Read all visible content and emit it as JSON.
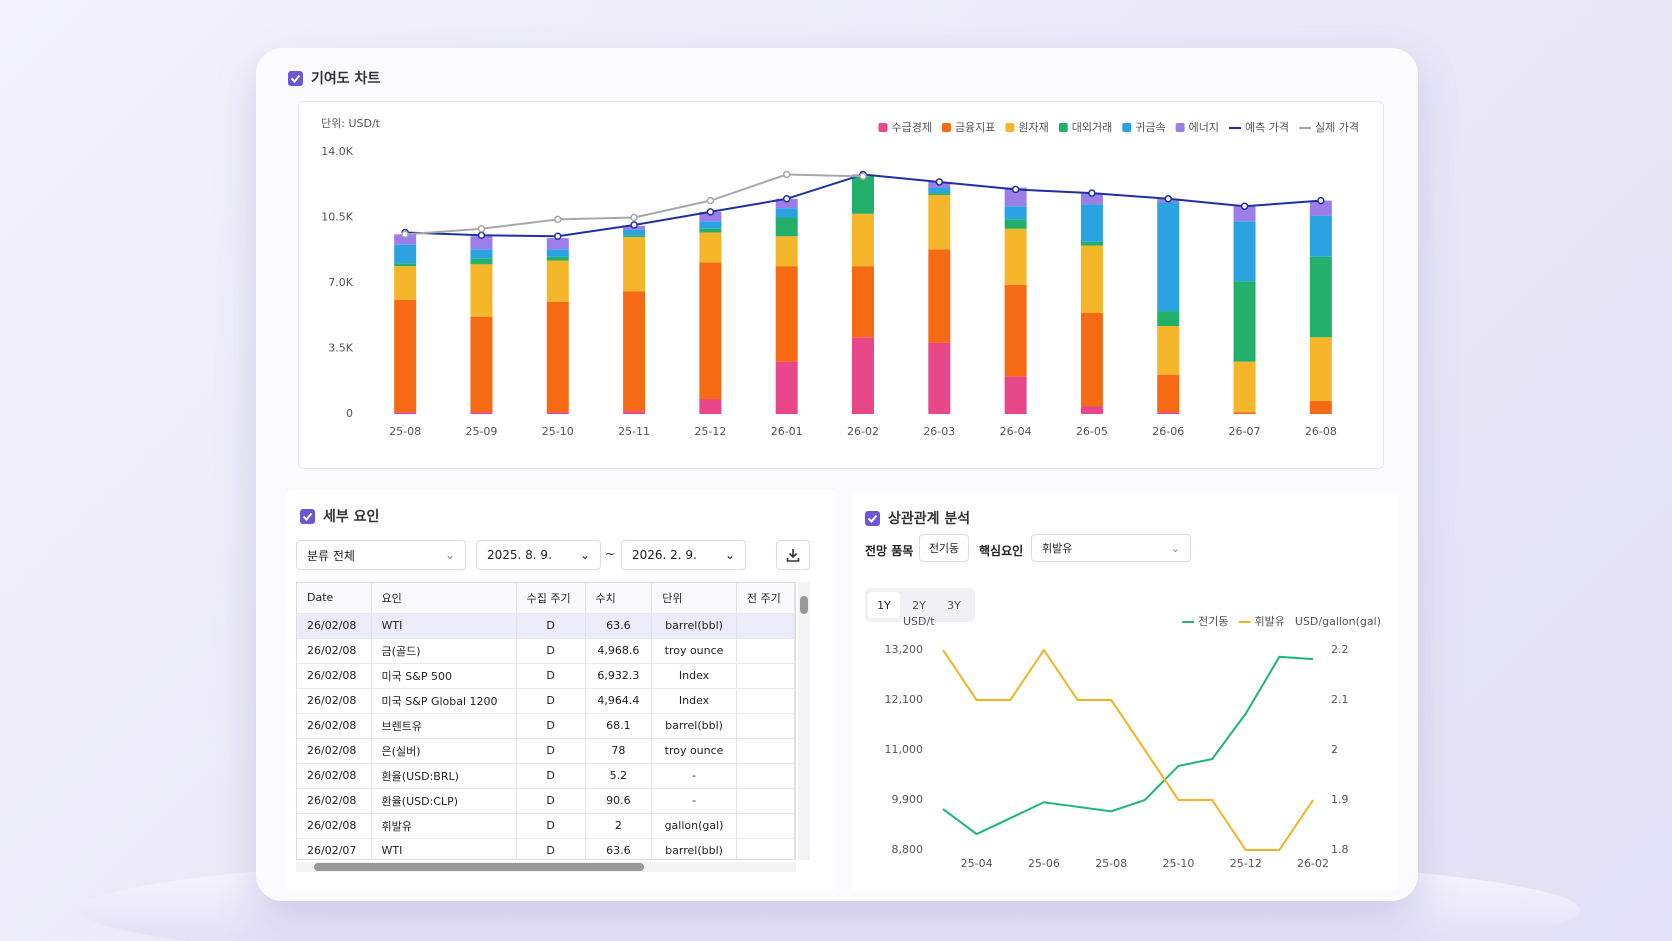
{
  "contribution_panel": {
    "title": "기여도 차트"
  },
  "chart_data": [
    {
      "type": "bar",
      "stacked": true,
      "unit_label": "단위: USD/t",
      "legend": "top-right",
      "grid": false,
      "categories": [
        "25-08",
        "25-09",
        "25-10",
        "25-11",
        "25-12",
        "26-01",
        "26-02",
        "26-03",
        "26-04",
        "26-05",
        "26-06",
        "26-07",
        "26-08"
      ],
      "ylim": [
        0,
        14000
      ],
      "yticks": [
        0,
        {
          "value": 3500,
          "label": "3.5K"
        },
        {
          "value": 7000,
          "label": "7.0K"
        },
        {
          "value": 10500,
          "label": "10.5K"
        },
        {
          "value": 14000,
          "label": "14.0K"
        }
      ],
      "series": [
        {
          "name": "수급경제",
          "type": "bar",
          "color": "#e8488a",
          "values": [
            100,
            100,
            100,
            150,
            800,
            2800,
            4100,
            3800,
            2000,
            400,
            100,
            0,
            0
          ]
        },
        {
          "name": "금융지표",
          "type": "bar",
          "color": "#f66a14",
          "values": [
            6000,
            5100,
            5900,
            6400,
            7300,
            5100,
            3800,
            5000,
            4900,
            5000,
            2000,
            100,
            700
          ]
        },
        {
          "name": "원자재",
          "type": "bar",
          "color": "#f6b62a",
          "values": [
            1800,
            2800,
            2200,
            2900,
            1600,
            1600,
            2800,
            2900,
            3000,
            3600,
            2600,
            2700,
            3400
          ]
        },
        {
          "name": "대외거래",
          "type": "bar",
          "color": "#22b06a",
          "values": [
            150,
            300,
            200,
            100,
            200,
            1000,
            2000,
            100,
            500,
            200,
            800,
            4300,
            4300
          ]
        },
        {
          "name": "귀금속",
          "type": "bar",
          "color": "#2ba2e2",
          "values": [
            1000,
            500,
            400,
            300,
            400,
            500,
            0,
            300,
            700,
            2000,
            5800,
            3200,
            2200
          ]
        },
        {
          "name": "에너지",
          "type": "bar",
          "color": "#9c7ee8",
          "values": [
            550,
            700,
            600,
            200,
            500,
            500,
            100,
            300,
            1000,
            600,
            200,
            800,
            800
          ]
        },
        {
          "name": "예측 가격",
          "type": "line",
          "color": "#1f2fa8",
          "values": [
            9700,
            9550,
            9500,
            10100,
            10800,
            11500,
            12800,
            12400,
            12000,
            11800,
            11500,
            11100,
            11400
          ]
        },
        {
          "name": "실제 가격",
          "type": "line",
          "color": "#a8a8a8",
          "values": [
            9600,
            9900,
            10400,
            10500,
            11400,
            12800,
            12700,
            null,
            null,
            null,
            null,
            null,
            null
          ]
        }
      ]
    },
    {
      "type": "line",
      "legend": "top-right",
      "grid": false,
      "ylabel": "USD/t",
      "y2label": "USD/gallon(gal)",
      "categories": [
        null,
        "25-04",
        null,
        "25-06",
        null,
        "25-08",
        null,
        "25-10",
        null,
        "25-12",
        null,
        "26-02"
      ],
      "ylim": [
        8800,
        13200
      ],
      "yticks": [
        {
          "value": 8800,
          "label": "8,800"
        },
        {
          "value": 9900,
          "label": "9,900"
        },
        {
          "value": 11000,
          "label": "11,000"
        },
        {
          "value": 12100,
          "label": "12,100"
        },
        {
          "value": 13200,
          "label": "13,200"
        }
      ],
      "y2lim": [
        1.8,
        2.2
      ],
      "y2ticks": [
        1.8,
        1.9,
        2,
        2.1,
        2.2
      ],
      "series": [
        {
          "name": "전기동",
          "color": "#1fb47a",
          "values": [
            9700,
            9150,
            9500,
            9850,
            9750,
            9650,
            9900,
            10650,
            10800,
            11800,
            13050,
            13000
          ]
        },
        {
          "name": "휘발유",
          "color": "#f4b21f",
          "axis": "y2",
          "values": [
            2.2,
            2.1,
            2.1,
            2.2,
            2.1,
            2.1,
            2.0,
            1.9,
            1.9,
            1.8,
            1.8,
            1.9
          ]
        }
      ]
    }
  ],
  "detail_panel": {
    "title": "세부 요인",
    "filters": {
      "category": "분류 전체",
      "start": "2025. 8. 9.",
      "separator": "~",
      "end": "2026. 2. 9."
    },
    "table": {
      "columns": [
        "Date",
        "요인",
        "수집 주기",
        "수치",
        "단위",
        "전 주기"
      ],
      "rows": [
        [
          "26/02/08",
          "WTI",
          "D",
          "63.6",
          "barrel(bbl)"
        ],
        [
          "26/02/08",
          "금(골드)",
          "D",
          "4,968.6",
          "troy ounce"
        ],
        [
          "26/02/08",
          "미국 S&P 500",
          "D",
          "6,932.3",
          "Index"
        ],
        [
          "26/02/08",
          "미국 S&P Global 1200",
          "D",
          "4,964.4",
          "Index"
        ],
        [
          "26/02/08",
          "브렌트유",
          "D",
          "68.1",
          "barrel(bbl)"
        ],
        [
          "26/02/08",
          "은(실버)",
          "D",
          "78",
          "troy ounce"
        ],
        [
          "26/02/08",
          "환율(USD:BRL)",
          "D",
          "5.2",
          "-"
        ],
        [
          "26/02/08",
          "환율(USD:CLP)",
          "D",
          "90.6",
          "-"
        ],
        [
          "26/02/08",
          "휘발유",
          "D",
          "2",
          "gallon(gal)"
        ],
        [
          "26/02/07",
          "WTI",
          "D",
          "63.6",
          "barrel(bbl)"
        ]
      ]
    }
  },
  "correlation_panel": {
    "title": "상관관계 분석",
    "target_label": "전망 품목",
    "target": "전기동",
    "factor_label": "핵심요인",
    "factor": "휘발유",
    "periods": [
      "1Y",
      "2Y",
      "3Y"
    ],
    "selected_period": "1Y"
  }
}
